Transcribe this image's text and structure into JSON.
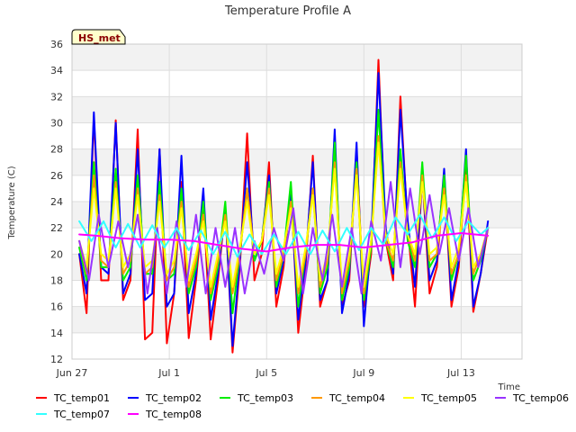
{
  "chart_data": {
    "type": "line",
    "title": "Temperature Profile A",
    "xlabel": "Time",
    "ylabel": "Temperature (C)",
    "badge": "HS_met",
    "grid": true,
    "legend_placement": "bottom",
    "x_unit": "days from Jun 27",
    "xlim": [
      0,
      18.5
    ],
    "ylim": [
      12,
      36
    ],
    "yticks": [
      12,
      14,
      16,
      18,
      20,
      22,
      24,
      26,
      28,
      30,
      32,
      34,
      36
    ],
    "xticks": [
      {
        "value": 0,
        "label": "Jun 27"
      },
      {
        "value": 4,
        "label": "Jul 1"
      },
      {
        "value": 8,
        "label": "Jul 5"
      },
      {
        "value": 12,
        "label": "Jul 9"
      },
      {
        "value": 16,
        "label": "Jul 13"
      }
    ],
    "series": [
      {
        "name": "TC_temp01",
        "color": "#ff0000",
        "x": [
          0.3,
          0.6,
          0.9,
          1.2,
          1.5,
          1.8,
          2.1,
          2.4,
          2.7,
          3.0,
          3.3,
          3.6,
          3.9,
          4.2,
          4.5,
          4.8,
          5.1,
          5.4,
          5.7,
          6.0,
          6.3,
          6.6,
          6.9,
          7.2,
          7.5,
          7.8,
          8.1,
          8.4,
          8.7,
          9.0,
          9.3,
          9.6,
          9.9,
          10.2,
          10.5,
          10.8,
          11.1,
          11.4,
          11.7,
          12.0,
          12.3,
          12.6,
          12.9,
          13.2,
          13.5,
          13.8,
          14.1,
          14.4,
          14.7,
          15.0,
          15.3,
          15.6,
          15.9,
          16.2,
          16.5,
          16.8,
          17.1
        ],
        "y": [
          20,
          15.5,
          30.5,
          18,
          18,
          30.2,
          16.5,
          18,
          29.5,
          13.5,
          14,
          28,
          13.2,
          17,
          25.5,
          13.6,
          18,
          24,
          13.5,
          18,
          23.5,
          12.5,
          19,
          29.2,
          18,
          20,
          27,
          16,
          19,
          25,
          14,
          19,
          27.5,
          16,
          18,
          28.5,
          16,
          18,
          28,
          16,
          20,
          34.8,
          21,
          18,
          32,
          22,
          16,
          26,
          17,
          19,
          26,
          16,
          19,
          27,
          15.6,
          18.5,
          22
        ]
      },
      {
        "name": "TC_temp02",
        "color": "#0000ff",
        "x": [
          0.3,
          0.6,
          0.9,
          1.2,
          1.5,
          1.8,
          2.1,
          2.4,
          2.7,
          3.0,
          3.3,
          3.6,
          3.9,
          4.2,
          4.5,
          4.8,
          5.1,
          5.4,
          5.7,
          6.0,
          6.3,
          6.6,
          6.9,
          7.2,
          7.5,
          7.8,
          8.1,
          8.4,
          8.7,
          9.0,
          9.3,
          9.6,
          9.9,
          10.2,
          10.5,
          10.8,
          11.1,
          11.4,
          11.7,
          12.0,
          12.3,
          12.6,
          12.9,
          13.2,
          13.5,
          13.8,
          14.1,
          14.4,
          14.7,
          15.0,
          15.3,
          15.6,
          15.9,
          16.2,
          16.5,
          16.8,
          17.1
        ],
        "y": [
          20,
          17,
          30.8,
          19,
          18.5,
          30,
          17,
          18.5,
          28,
          16.5,
          17,
          28,
          16,
          17,
          27.5,
          15.5,
          18.5,
          25,
          15,
          18.5,
          23.5,
          13,
          19.5,
          27,
          19.5,
          21,
          26,
          17,
          19.5,
          24.5,
          15,
          19.5,
          27,
          16.5,
          18,
          29.5,
          15.5,
          18.5,
          28.5,
          14.5,
          21,
          33.8,
          22,
          18.5,
          31,
          22.5,
          17.5,
          26,
          18,
          19.5,
          26.5,
          16.5,
          19.5,
          28,
          16,
          18.5,
          22.5
        ]
      },
      {
        "name": "TC_temp03",
        "color": "#00ee00",
        "x": [
          0.3,
          0.6,
          0.9,
          1.2,
          1.5,
          1.8,
          2.1,
          2.4,
          2.7,
          3.0,
          3.3,
          3.6,
          3.9,
          4.2,
          4.5,
          4.8,
          5.1,
          5.4,
          5.7,
          6.0,
          6.3,
          6.6,
          6.9,
          7.2,
          7.5,
          7.8,
          8.1,
          8.4,
          8.7,
          9.0,
          9.3,
          9.6,
          9.9,
          10.2,
          10.5,
          10.8,
          11.1,
          11.4,
          11.7,
          12.0,
          12.3,
          12.6,
          12.9,
          13.2,
          13.5,
          13.8,
          14.1,
          14.4,
          14.7,
          15.0,
          15.3,
          15.6,
          15.9,
          16.2,
          16.5,
          16.8,
          17.1
        ],
        "y": [
          20.5,
          18,
          27,
          19,
          19,
          26.5,
          18,
          19,
          26,
          18.5,
          18.5,
          25.5,
          18,
          18.5,
          25,
          17,
          19,
          24,
          16.5,
          19,
          24,
          15.5,
          20,
          25,
          19.5,
          21,
          25.5,
          17.5,
          20,
          25.5,
          16,
          20,
          25,
          17,
          19,
          28.5,
          16.5,
          19,
          27,
          16.5,
          20.5,
          31,
          21,
          19,
          28,
          21,
          19,
          27,
          19,
          20,
          26,
          18,
          20,
          27.5,
          18,
          19.5,
          22
        ]
      },
      {
        "name": "TC_temp04",
        "color": "#ff9900",
        "x": [
          0.3,
          0.6,
          0.9,
          1.2,
          1.5,
          1.8,
          2.1,
          2.4,
          2.7,
          3.0,
          3.3,
          3.6,
          3.9,
          4.2,
          4.5,
          4.8,
          5.1,
          5.4,
          5.7,
          6.0,
          6.3,
          6.6,
          6.9,
          7.2,
          7.5,
          7.8,
          8.1,
          8.4,
          8.7,
          9.0,
          9.3,
          9.6,
          9.9,
          10.2,
          10.5,
          10.8,
          11.1,
          11.4,
          11.7,
          12.0,
          12.3,
          12.6,
          12.9,
          13.2,
          13.5,
          13.8,
          14.1,
          14.4,
          14.7,
          15.0,
          15.3,
          15.6,
          15.9,
          16.2,
          16.5,
          16.8,
          17.1
        ],
        "y": [
          21,
          18.5,
          26,
          19.5,
          19,
          25.5,
          18.5,
          19.5,
          25,
          18.5,
          19,
          24.5,
          18,
          19,
          24,
          17.5,
          19.5,
          23,
          17,
          19.5,
          23,
          17,
          20,
          25,
          20,
          21,
          25,
          18,
          20,
          24,
          17,
          20,
          25,
          17.5,
          19.5,
          27,
          17,
          19.5,
          26.5,
          17,
          21,
          29,
          21,
          19.5,
          27,
          21.5,
          19.5,
          26,
          19.5,
          20,
          25,
          18.5,
          20,
          26,
          18.5,
          20,
          22
        ]
      },
      {
        "name": "TC_temp05",
        "color": "#ffff00",
        "x": [
          0.3,
          0.6,
          0.9,
          1.2,
          1.5,
          1.8,
          2.1,
          2.4,
          2.7,
          3.0,
          3.3,
          3.6,
          3.9,
          4.2,
          4.5,
          4.8,
          5.1,
          5.4,
          5.7,
          6.0,
          6.3,
          6.6,
          6.9,
          7.2,
          7.5,
          7.8,
          8.1,
          8.4,
          8.7,
          9.0,
          9.3,
          9.6,
          9.9,
          10.2,
          10.5,
          10.8,
          11.1,
          11.4,
          11.7,
          12.0,
          12.3,
          12.6,
          12.9,
          13.2,
          13.5,
          13.8,
          14.1,
          14.4,
          14.7,
          15.0,
          15.3,
          15.6,
          15.9,
          16.2,
          16.5,
          16.8,
          17.1
        ],
        "y": [
          21,
          19,
          25,
          20,
          19.5,
          25,
          19,
          20,
          24.5,
          19,
          19.5,
          24,
          18.5,
          19.5,
          23.5,
          18,
          20,
          22.5,
          17.5,
          20,
          22.5,
          17.5,
          20.5,
          24,
          20,
          21,
          24.5,
          18.5,
          20.5,
          23.5,
          17.5,
          20.5,
          24.5,
          18,
          20,
          26.5,
          17.5,
          20,
          26,
          17.5,
          21,
          28.5,
          21.5,
          20,
          26.5,
          21.5,
          20,
          25.5,
          20,
          20.5,
          24.5,
          19,
          20.5,
          25.5,
          19,
          20,
          22
        ]
      },
      {
        "name": "TC_temp06",
        "color": "#9933ff",
        "x": [
          0.3,
          0.7,
          1.1,
          1.5,
          1.9,
          2.3,
          2.7,
          3.1,
          3.5,
          3.9,
          4.3,
          4.7,
          5.1,
          5.5,
          5.9,
          6.3,
          6.7,
          7.1,
          7.5,
          7.9,
          8.3,
          8.7,
          9.1,
          9.5,
          9.9,
          10.3,
          10.7,
          11.1,
          11.5,
          11.9,
          12.3,
          12.7,
          13.1,
          13.5,
          13.9,
          14.3,
          14.7,
          15.1,
          15.5,
          15.9,
          16.3,
          16.7,
          17.1
        ],
        "y": [
          21,
          18,
          23,
          19,
          22.5,
          19,
          23,
          17,
          22,
          17,
          22.5,
          17.5,
          23,
          17,
          22,
          17.5,
          22,
          17,
          21,
          18.5,
          22,
          19.5,
          23.5,
          17,
          22,
          18,
          23,
          17.5,
          22,
          17,
          22.5,
          19.5,
          25.5,
          19,
          25,
          20,
          24.5,
          20,
          23.5,
          19.5,
          23.5,
          19,
          22
        ]
      },
      {
        "name": "TC_temp07",
        "color": "#33ffff",
        "x": [
          0.3,
          0.8,
          1.3,
          1.8,
          2.3,
          2.8,
          3.3,
          3.8,
          4.3,
          4.8,
          5.3,
          5.8,
          6.3,
          6.8,
          7.3,
          7.8,
          8.3,
          8.8,
          9.3,
          9.8,
          10.3,
          10.8,
          11.3,
          11.8,
          12.3,
          12.8,
          13.3,
          13.8,
          14.3,
          14.8,
          15.3,
          15.8,
          16.3,
          16.8,
          17.1
        ],
        "y": [
          22.5,
          21,
          22.5,
          20.5,
          22.3,
          20.5,
          22.2,
          20.5,
          22,
          20.3,
          21.8,
          20,
          21.7,
          19.8,
          21.5,
          20,
          21.5,
          20,
          21.7,
          20,
          21.8,
          20.2,
          22,
          20.3,
          22,
          20.7,
          22.8,
          21.5,
          23,
          21.2,
          22.8,
          21,
          22.5,
          21.5,
          22
        ]
      },
      {
        "name": "TC_temp08",
        "color": "#ff00ff",
        "x": [
          0.3,
          1.0,
          2.0,
          3.0,
          4.0,
          5.0,
          6.0,
          7.0,
          8.0,
          9.0,
          10.0,
          11.0,
          12.0,
          13.0,
          14.0,
          15.0,
          16.0,
          17.1
        ],
        "y": [
          21.5,
          21.4,
          21.2,
          21.1,
          21.1,
          21.0,
          20.7,
          20.4,
          20.2,
          20.5,
          20.7,
          20.7,
          20.5,
          20.7,
          20.9,
          21.4,
          21.6,
          21.4
        ]
      }
    ]
  }
}
